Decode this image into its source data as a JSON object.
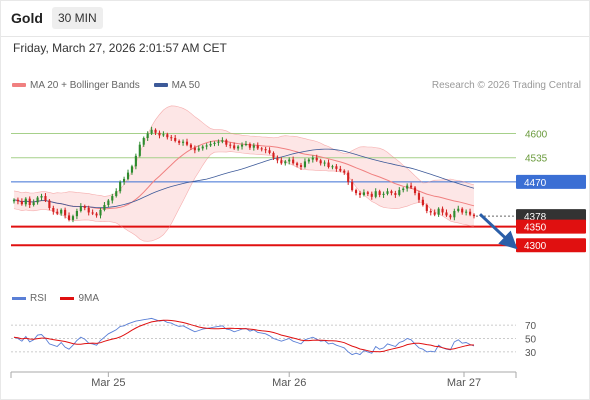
{
  "header": {
    "title": "Gold",
    "timeframe": "30 MIN"
  },
  "datetime": "Friday, March 27, 2026 2:01:57 AM CET",
  "legend": {
    "bb_label": "MA 20 + Bollinger Bands",
    "ma50_label": "MA 50",
    "research": "Research © 2026 Trading Central"
  },
  "rsi_legend": {
    "rsi_label": "RSI",
    "ma_label": "9MA"
  },
  "colors": {
    "bb": "#f08080",
    "bb_fill": "#fde3e3",
    "ma50": "#3d5a99",
    "rsi": "#5a7fd6",
    "rsi_ma": "#e01010",
    "up": "#2e8b2e",
    "down": "#d42020",
    "target_green": "#a6d08a",
    "pivot_blue": "#3b6fd4",
    "support_red": "#e01010"
  },
  "chart_data": [
    {
      "type": "candlestick",
      "title": "",
      "y_axis": {
        "min": 4220,
        "max": 4690
      },
      "x_labels": [
        "Mar 25",
        "Mar 26",
        "Mar 27"
      ],
      "levels": [
        {
          "value": 4600,
          "label": "4600",
          "role": "target"
        },
        {
          "value": 4535,
          "label": "4535",
          "role": "target"
        },
        {
          "value": 4470,
          "label": "4470",
          "role": "pivot"
        },
        {
          "value": 4378,
          "label": "4378",
          "role": "last"
        },
        {
          "value": 4350,
          "label": "4350",
          "role": "support"
        },
        {
          "value": 4300,
          "label": "4300",
          "role": "support"
        }
      ],
      "close": [
        4422,
        4418,
        4410,
        4425,
        4408,
        4415,
        4428,
        4432,
        4420,
        4400,
        4390,
        4385,
        4395,
        4380,
        4368,
        4378,
        4392,
        4405,
        4400,
        4388,
        4385,
        4380,
        4395,
        4408,
        4420,
        4432,
        4445,
        4470,
        4478,
        4495,
        4512,
        4540,
        4570,
        4588,
        4600,
        4610,
        4602,
        4595,
        4598,
        4590,
        4588,
        4580,
        4575,
        4578,
        4570,
        4562,
        4555,
        4560,
        4565,
        4568,
        4572,
        4575,
        4578,
        4582,
        4570,
        4568,
        4560,
        4565,
        4570,
        4572,
        4562,
        4568,
        4560,
        4558,
        4555,
        4548,
        4535,
        4528,
        4520,
        4525,
        4530,
        4520,
        4515,
        4510,
        4525,
        4530,
        4535,
        4528,
        4520,
        4522,
        4510,
        4512,
        4505,
        4500,
        4495,
        4470,
        4448,
        4440,
        4435,
        4442,
        4438,
        4430,
        4445,
        4435,
        4438,
        4445,
        4440,
        4435,
        4448,
        4452,
        4460,
        4455,
        4440,
        4422,
        4408,
        4392,
        4388,
        4382,
        4398,
        4388,
        4380,
        4375,
        4392,
        4398,
        4388,
        4390,
        4382,
        4378
      ],
      "rsi": [
        52,
        50,
        46,
        53,
        45,
        48,
        55,
        56,
        50,
        42,
        40,
        38,
        44,
        37,
        34,
        40,
        47,
        52,
        49,
        43,
        42,
        40,
        47,
        52,
        57,
        60,
        63,
        68,
        69,
        72,
        74,
        76,
        77,
        78,
        79,
        80,
        78,
        76,
        77,
        74,
        73,
        70,
        68,
        69,
        66,
        63,
        60,
        62,
        64,
        65,
        66,
        67,
        68,
        69,
        64,
        63,
        60,
        62,
        64,
        65,
        61,
        63,
        59,
        58,
        57,
        54,
        50,
        48,
        46,
        48,
        50,
        46,
        44,
        42,
        48,
        50,
        52,
        49,
        46,
        47,
        42,
        43,
        40,
        38,
        36,
        30,
        26,
        28,
        26,
        32,
        30,
        28,
        38,
        34,
        36,
        42,
        40,
        38,
        44,
        46,
        50,
        48,
        42,
        36,
        34,
        30,
        31,
        30,
        40,
        36,
        34,
        33,
        45,
        48,
        43,
        44,
        41,
        39
      ],
      "rsi_levels": [
        70,
        50,
        30
      ],
      "forecast": {
        "from": 4378,
        "to": 4300
      }
    }
  ]
}
